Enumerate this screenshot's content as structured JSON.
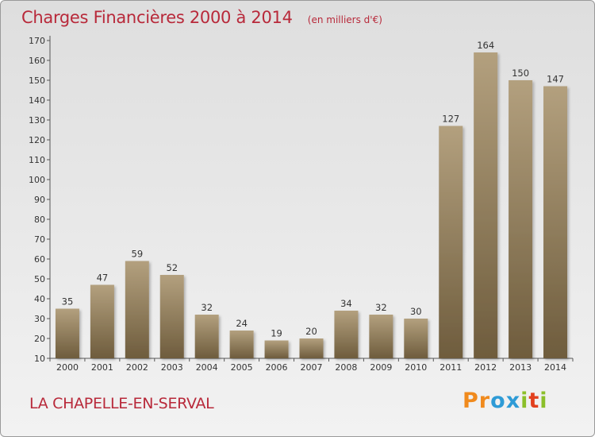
{
  "header": {
    "title": "Charges Financières 2000 à 2014",
    "unit": "(en milliers d'€)"
  },
  "footer": {
    "commune": "LA CHAPELLE-EN-SERVAL",
    "logo": [
      "P",
      "r",
      "o",
      "x",
      "i",
      "t",
      "i"
    ]
  },
  "colors": {
    "bar_top": "#b3a07e",
    "bar_bottom": "#6e5c3d",
    "title": "#b8293a",
    "logo": [
      "#f08a1d",
      "#f08a1d",
      "#2e9bd6",
      "#2e9bd6",
      "#8bbf2a",
      "#e2401e",
      "#8bbf2a"
    ]
  },
  "chart_data": {
    "type": "bar",
    "title": "Charges Financières 2000 à 2014",
    "xlabel": "",
    "ylabel": "",
    "ylim": [
      10,
      170
    ],
    "yticks": [
      10,
      20,
      30,
      40,
      50,
      60,
      70,
      80,
      90,
      100,
      110,
      120,
      130,
      140,
      150,
      160,
      170
    ],
    "categories": [
      "2000",
      "2001",
      "2002",
      "2003",
      "2004",
      "2005",
      "2006",
      "2007",
      "2008",
      "2009",
      "2010",
      "2011",
      "2012",
      "2013",
      "2014"
    ],
    "values": [
      35,
      47,
      59,
      52,
      32,
      24,
      19,
      20,
      34,
      32,
      30,
      127,
      164,
      150,
      147
    ],
    "grid": false
  }
}
